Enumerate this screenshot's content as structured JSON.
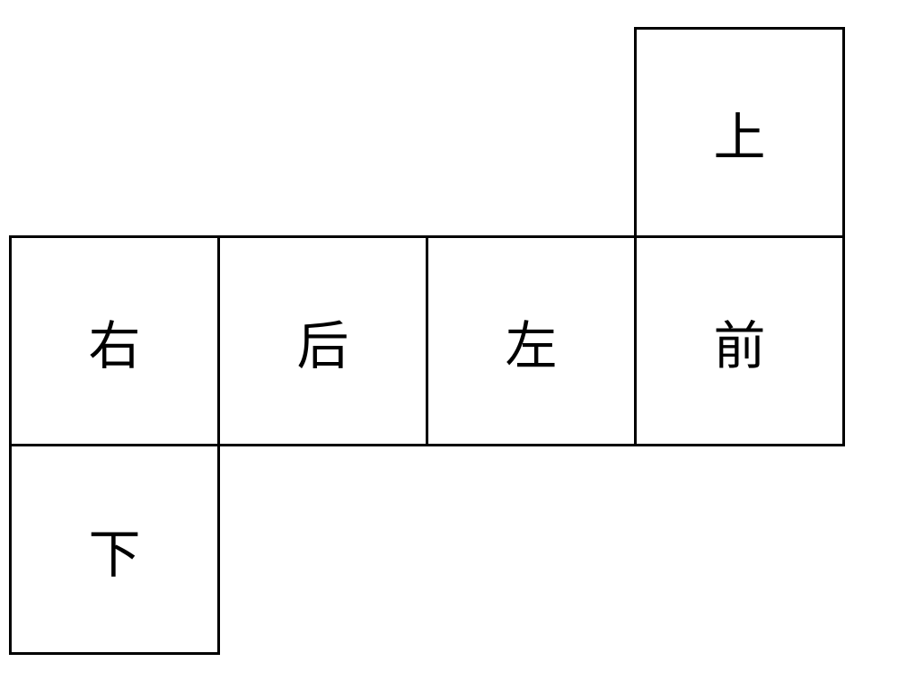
{
  "diagram": {
    "type": "cube-net",
    "background_color": "#ffffff",
    "border_color": "#000000",
    "border_width": 3,
    "cell_size": 235,
    "font_size": 58,
    "font_family": "SimSun",
    "font_color": "#000000",
    "cells": [
      {
        "label": "上",
        "col": 3,
        "row": 0
      },
      {
        "label": "右",
        "col": 0,
        "row": 1
      },
      {
        "label": "后",
        "col": 1,
        "row": 1
      },
      {
        "label": "左",
        "col": 2,
        "row": 1
      },
      {
        "label": "前",
        "col": 3,
        "row": 1
      },
      {
        "label": "下",
        "col": 0,
        "row": 2
      }
    ]
  }
}
